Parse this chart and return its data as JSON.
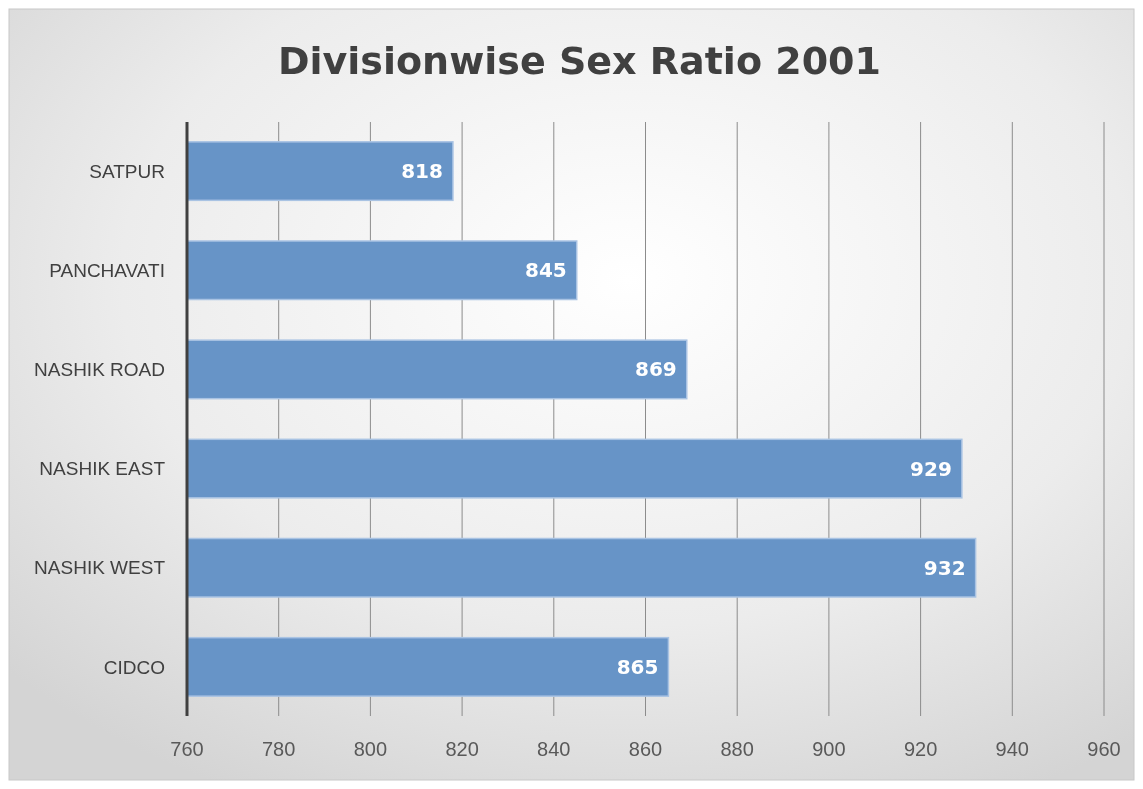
{
  "chart_data": {
    "type": "bar",
    "orientation": "horizontal",
    "title": "Divisionwise Sex Ratio 2001",
    "categories": [
      "SATPUR",
      "PANCHAVATI",
      "NASHIK ROAD",
      "NASHIK EAST",
      "NASHIK WEST",
      "CIDCO"
    ],
    "values": [
      818,
      845,
      869,
      929,
      932,
      865
    ],
    "color": "#6794c7",
    "xlim": [
      760,
      960
    ],
    "xticks": [
      760,
      780,
      800,
      820,
      840,
      860,
      880,
      900,
      920,
      940,
      960
    ],
    "grid": "x",
    "data_labels": true
  }
}
